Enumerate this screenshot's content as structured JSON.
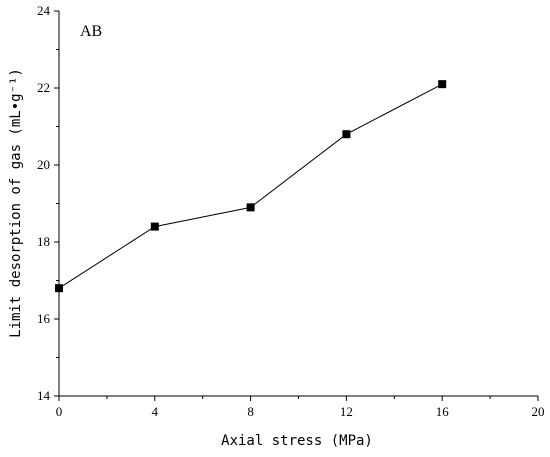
{
  "chart_data": {
    "type": "line",
    "annotation": "AB",
    "xlabel": "Axial stress (MPa)",
    "ylabel": "Limit desorption of gas (mL•g⁻¹)",
    "x": [
      0,
      4,
      8,
      12,
      16
    ],
    "series": [
      {
        "values": [
          16.8,
          18.4,
          18.9,
          20.8,
          22.1
        ]
      }
    ],
    "xlim": [
      0,
      20
    ],
    "ylim": [
      14,
      24
    ],
    "xticks": [
      0,
      4,
      8,
      12,
      16,
      20
    ],
    "yticks": [
      14,
      16,
      18,
      20,
      22,
      24
    ],
    "grid": false,
    "legend": "none",
    "line_color": "#000000",
    "marker": "square"
  }
}
